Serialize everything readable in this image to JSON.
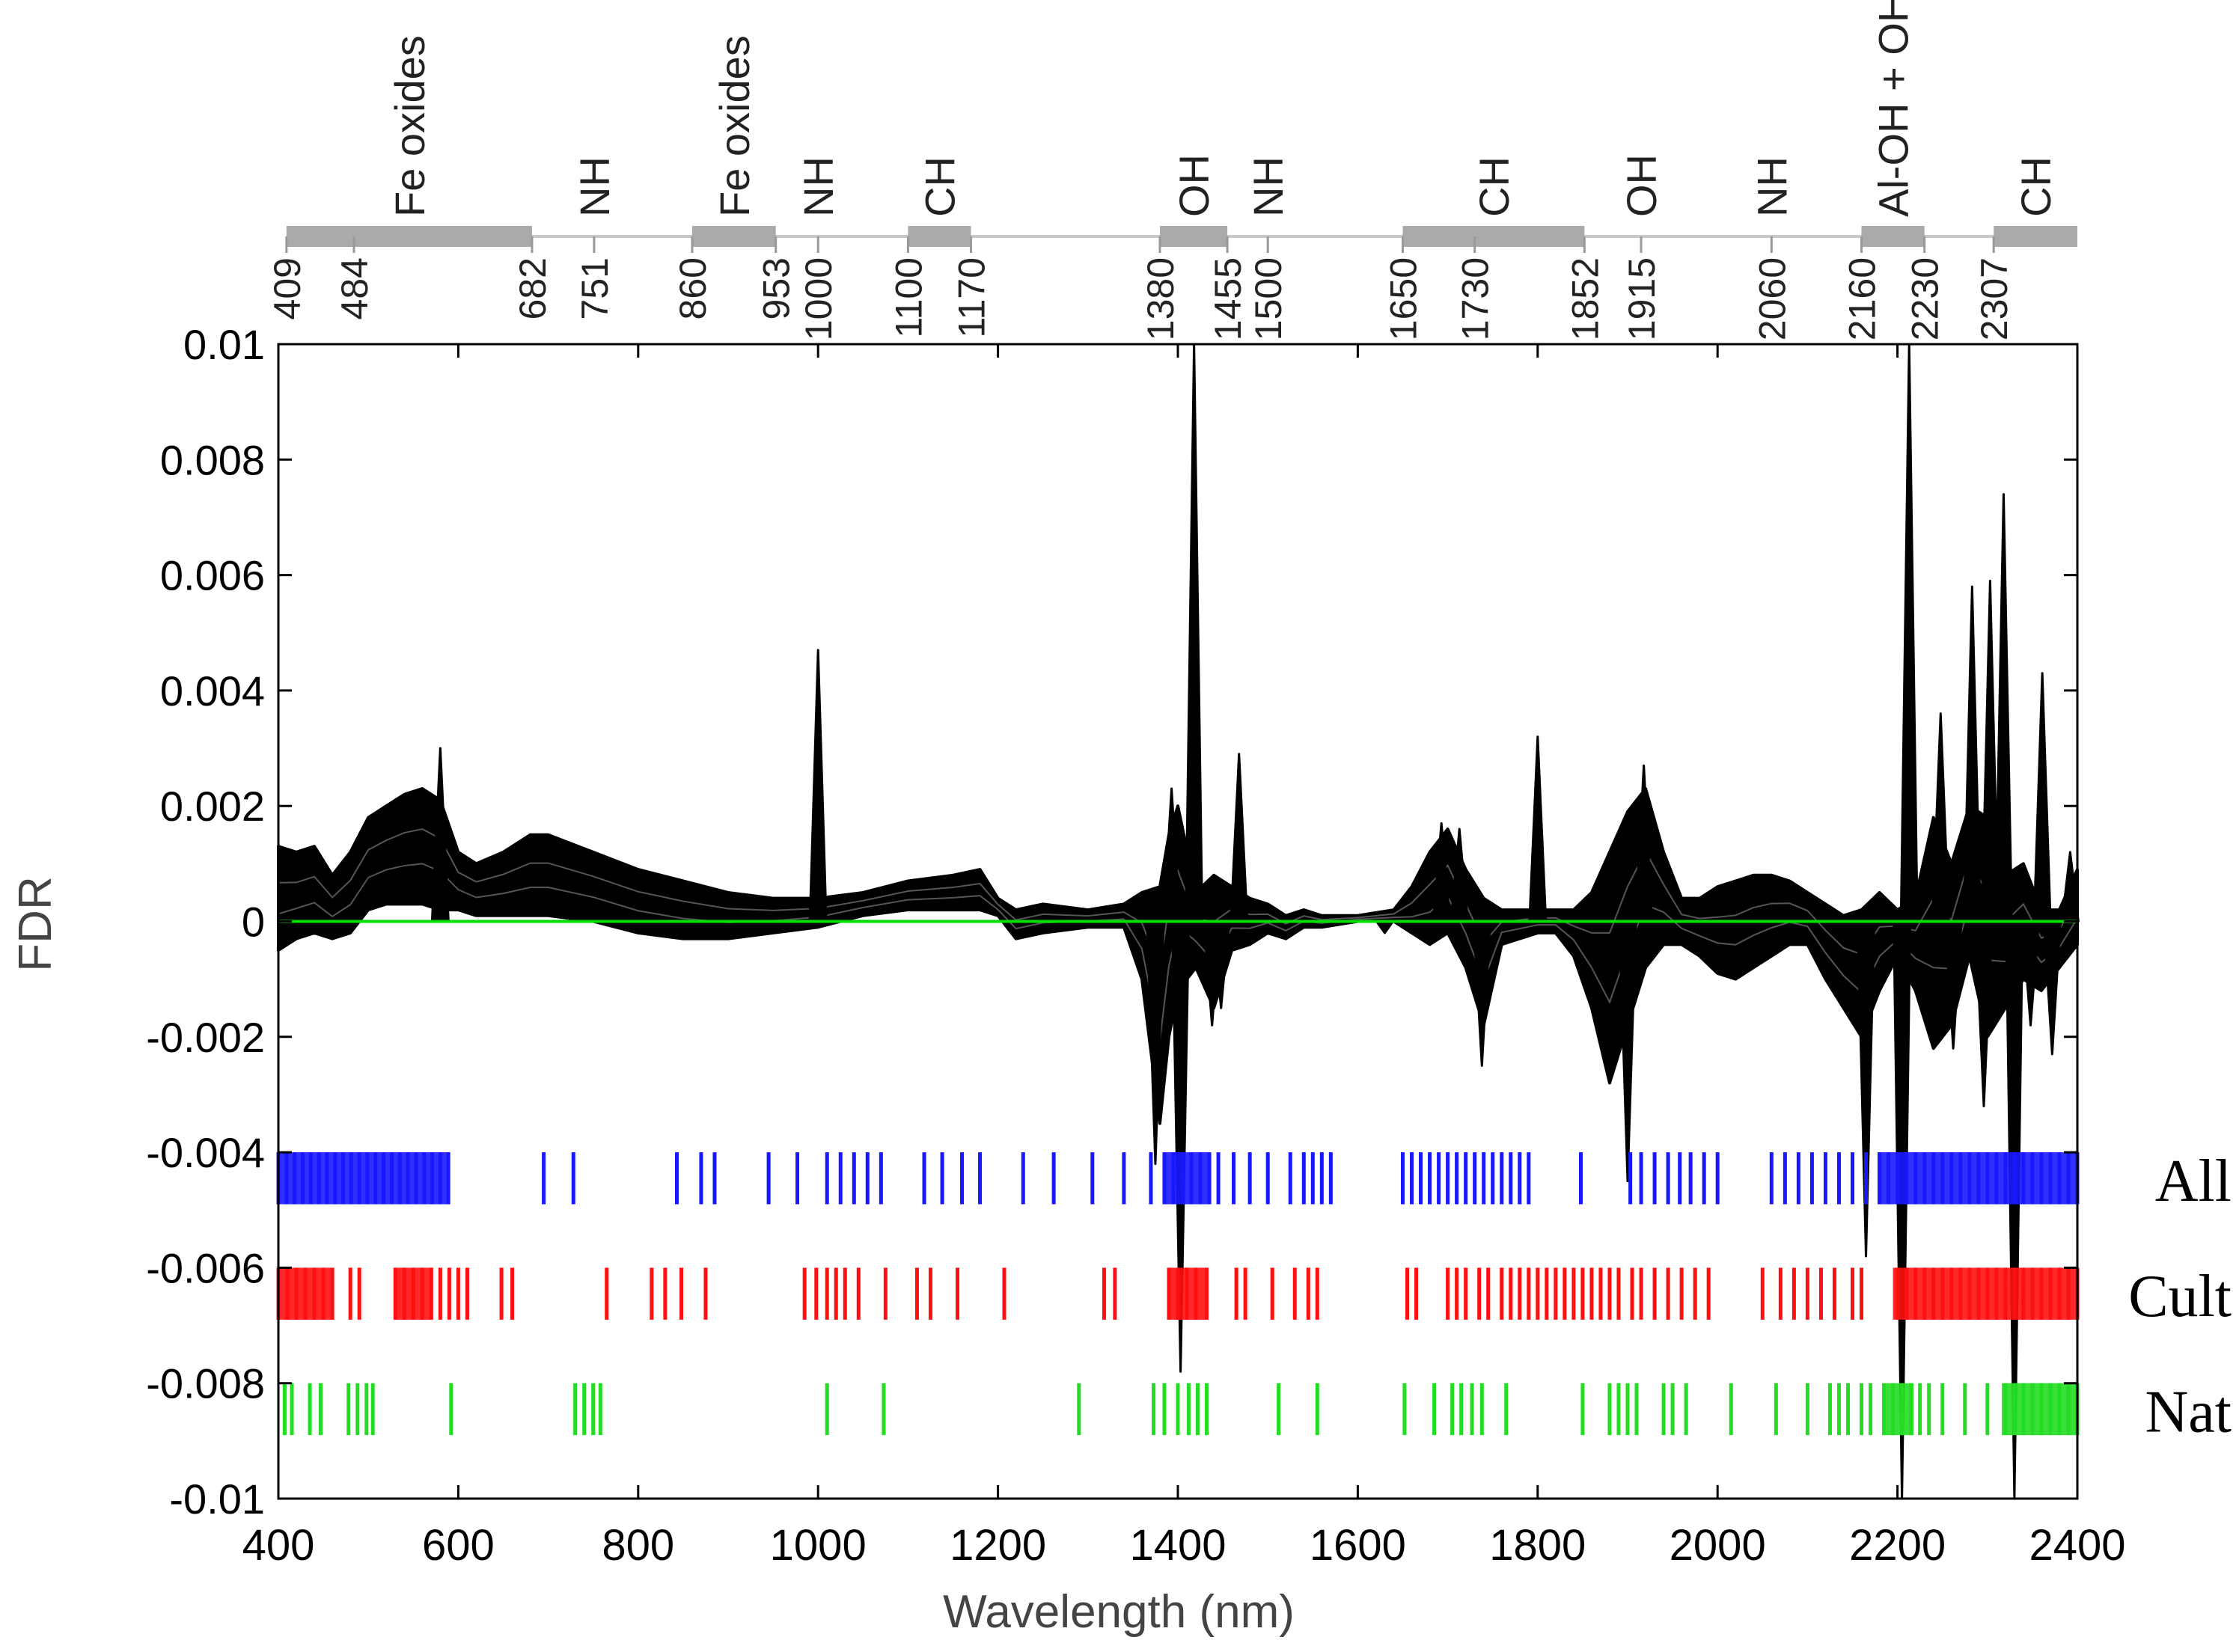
{
  "chart_data": {
    "type": "line",
    "title": "",
    "xlabel": "Wavelength (nm)",
    "ylabel": "FDR",
    "xlim": [
      400,
      2400
    ],
    "ylim": [
      -0.01,
      0.01
    ],
    "x_ticks": [
      400,
      600,
      800,
      1000,
      1200,
      1400,
      1600,
      1800,
      2000,
      2200,
      2400
    ],
    "y_ticks": [
      -0.01,
      -0.008,
      -0.006,
      -0.004,
      -0.002,
      0,
      0.002,
      0.004,
      0.006,
      0.008,
      0.01
    ],
    "y_tick_labels": [
      "-0.01",
      "-0.008",
      "-0.006",
      "-0.004",
      "-0.002",
      "0",
      "0.002",
      "0.004",
      "0.006",
      "0.008",
      "0.01"
    ],
    "zero_line_color": "#00dd00",
    "curve_color": "#000000",
    "band_line_color": "#c8c8c8",
    "band_bar_color": "#aaaaaa",
    "band_ticks": [
      409,
      484,
      682,
      751,
      860,
      953,
      1000,
      1100,
      1170,
      1380,
      1455,
      1500,
      1650,
      1730,
      1852,
      1915,
      2060,
      2160,
      2230,
      2307
    ],
    "band_tick_labels": [
      "409",
      "484",
      "682",
      "751",
      "860",
      "953",
      "1000",
      "1100",
      "1170",
      "1380",
      "1455",
      "1500",
      "1650",
      "1730",
      "1852",
      "1915",
      "2060",
      "2160",
      "2230",
      "2307"
    ],
    "absorption_bands": [
      {
        "label": "Fe oxides",
        "start": 409,
        "end": 682
      },
      {
        "label": "NH",
        "at": 751
      },
      {
        "label": "Fe oxides",
        "start": 860,
        "end": 953
      },
      {
        "label": "NH",
        "at": 1000
      },
      {
        "label": "CH",
        "start": 1100,
        "end": 1170
      },
      {
        "label": "OH",
        "start": 1380,
        "end": 1455
      },
      {
        "label": "NH",
        "at": 1500
      },
      {
        "label": "CH",
        "start": 1650,
        "end": 1852
      },
      {
        "label": "OH",
        "at": 1915
      },
      {
        "label": "NH",
        "at": 2060
      },
      {
        "label": "Al-OH + OH",
        "start": 2160,
        "end": 2230
      },
      {
        "label": "CH",
        "start": 2307,
        "end": 2400
      }
    ],
    "envelope": {
      "x": [
        400,
        420,
        440,
        460,
        480,
        500,
        520,
        540,
        560,
        580,
        600,
        620,
        650,
        680,
        700,
        750,
        800,
        850,
        900,
        950,
        1000,
        1050,
        1100,
        1150,
        1180,
        1200,
        1220,
        1250,
        1300,
        1340,
        1360,
        1380,
        1390,
        1400,
        1420,
        1440,
        1460,
        1480,
        1500,
        1520,
        1540,
        1560,
        1600,
        1640,
        1660,
        1680,
        1700,
        1720,
        1740,
        1760,
        1780,
        1800,
        1820,
        1840,
        1860,
        1880,
        1900,
        1920,
        1940,
        1960,
        1980,
        2000,
        2020,
        2040,
        2060,
        2080,
        2100,
        2120,
        2140,
        2160,
        2180,
        2200,
        2220,
        2240,
        2260,
        2280,
        2300,
        2320,
        2340,
        2360,
        2380,
        2400
      ],
      "upper": [
        0.0013,
        0.0012,
        0.0013,
        0.0008,
        0.0012,
        0.0018,
        0.002,
        0.0022,
        0.0023,
        0.0021,
        0.0012,
        0.001,
        0.0012,
        0.0015,
        0.0015,
        0.0012,
        0.0009,
        0.0007,
        0.0005,
        0.0004,
        0.0004,
        0.0005,
        0.0007,
        0.0008,
        0.0009,
        0.0004,
        0.0002,
        0.0003,
        0.0002,
        0.0003,
        0.0005,
        0.0006,
        0.0015,
        0.002,
        0.0005,
        0.0008,
        0.0006,
        0.0004,
        0.0003,
        0.0001,
        0.0002,
        0.0001,
        0.0001,
        0.0002,
        0.0006,
        0.0012,
        0.0016,
        0.0009,
        0.0004,
        0.0002,
        0.0002,
        0.0002,
        0.0002,
        0.0002,
        0.0005,
        0.0012,
        0.0019,
        0.0023,
        0.0012,
        0.0004,
        0.0004,
        0.0006,
        0.0007,
        0.0008,
        0.0008,
        0.0007,
        0.0005,
        0.0003,
        0.0001,
        0.0002,
        0.0005,
        0.0002,
        0.0004,
        0.0018,
        0.001,
        0.002,
        0.0018,
        0.0008,
        0.001,
        0.0002,
        0.0002,
        0.0009
      ],
      "lower": [
        -0.0005,
        -0.0003,
        -0.0002,
        -0.0003,
        -0.0002,
        0.0002,
        0.0003,
        0.0003,
        0.0003,
        0.0002,
        0.0002,
        0.0001,
        0.0001,
        0.0001,
        0.0001,
        0.0,
        -0.0002,
        -0.0003,
        -0.0003,
        -0.0002,
        -0.0001,
        0.0001,
        0.0002,
        0.0002,
        0.0002,
        0.0001,
        -0.0003,
        -0.0002,
        -0.0001,
        -0.0001,
        -0.001,
        -0.0035,
        -0.002,
        -0.0012,
        -0.0008,
        -0.0015,
        -0.0005,
        -0.0004,
        -0.0002,
        -0.0003,
        -0.0001,
        -0.0001,
        0.0,
        0.0,
        -0.0002,
        -0.0004,
        -0.0002,
        -0.0008,
        -0.0018,
        -0.0004,
        -0.0003,
        -0.0002,
        -0.0002,
        -0.0006,
        -0.0015,
        -0.0028,
        -0.0018,
        -0.0008,
        -0.0004,
        -0.0004,
        -0.0006,
        -0.0009,
        -0.001,
        -0.0008,
        -0.0006,
        -0.0004,
        -0.0004,
        -0.001,
        -0.0015,
        -0.002,
        -0.0012,
        -0.0006,
        -0.0012,
        -0.0022,
        -0.0018,
        -0.0006,
        -0.002,
        -0.0015,
        -0.001,
        -0.0012,
        -0.0008,
        -0.0004
      ]
    },
    "spikes": [
      {
        "x": 580,
        "value": 0.003
      },
      {
        "x": 1000,
        "value": 0.0047
      },
      {
        "x": 1000,
        "value": -0.0001
      },
      {
        "x": 1375,
        "value": -0.0042
      },
      {
        "x": 1393,
        "value": 0.0023
      },
      {
        "x": 1403,
        "value": -0.0078
      },
      {
        "x": 1418,
        "value": 0.01
      },
      {
        "x": 1438,
        "value": -0.0018
      },
      {
        "x": 1448,
        "value": -0.0015
      },
      {
        "x": 1468,
        "value": 0.0029
      },
      {
        "x": 1630,
        "value": -0.0002
      },
      {
        "x": 1693,
        "value": 0.0017
      },
      {
        "x": 1713,
        "value": 0.0016
      },
      {
        "x": 1738,
        "value": -0.0025
      },
      {
        "x": 1800,
        "value": 0.0032
      },
      {
        "x": 1900,
        "value": -0.0045
      },
      {
        "x": 1918,
        "value": 0.0027
      },
      {
        "x": 2165,
        "value": -0.0058
      },
      {
        "x": 2205,
        "value": -0.01
      },
      {
        "x": 2213,
        "value": 0.01
      },
      {
        "x": 2248,
        "value": 0.0036
      },
      {
        "x": 2262,
        "value": -0.0022
      },
      {
        "x": 2283,
        "value": 0.0058
      },
      {
        "x": 2296,
        "value": -0.0032
      },
      {
        "x": 2303,
        "value": 0.0059
      },
      {
        "x": 2318,
        "value": 0.0074
      },
      {
        "x": 2330,
        "value": -0.01
      },
      {
        "x": 2348,
        "value": -0.0018
      },
      {
        "x": 2361,
        "value": 0.0043
      },
      {
        "x": 2372,
        "value": -0.0023
      },
      {
        "x": 2392,
        "value": 0.0012
      }
    ],
    "selected_bands": [
      {
        "name": "All",
        "color": "#1818ff",
        "y_range": [
          -0.0049,
          -0.004
        ],
        "blocks": [
          [
            400,
            590
          ],
          [
            1385,
            1435
          ],
          [
            2180,
            2400
          ]
        ],
        "x": [
          400,
          409,
          418,
          427,
          436,
          445,
          454,
          463,
          472,
          481,
          490,
          499,
          508,
          517,
          526,
          535,
          544,
          553,
          562,
          571,
          580,
          589,
          695,
          728,
          843,
          870,
          885,
          945,
          977,
          1010,
          1025,
          1040,
          1055,
          1070,
          1118,
          1138,
          1160,
          1180,
          1228,
          1262,
          1305,
          1340,
          1370,
          1385,
          1395,
          1405,
          1415,
          1425,
          1435,
          1445,
          1462,
          1480,
          1500,
          1525,
          1540,
          1550,
          1560,
          1570,
          1650,
          1660,
          1670,
          1680,
          1690,
          1700,
          1710,
          1720,
          1730,
          1740,
          1750,
          1760,
          1770,
          1780,
          1790,
          1848,
          1903,
          1915,
          1930,
          1945,
          1958,
          1970,
          1985,
          2000,
          2060,
          2075,
          2090,
          2105,
          2120,
          2135,
          2150,
          2165,
          2180,
          2190,
          2200,
          2210,
          2220,
          2230,
          2240,
          2250,
          2260,
          2270,
          2280,
          2290,
          2300,
          2310,
          2320,
          2330,
          2340,
          2350,
          2360,
          2370,
          2380,
          2390,
          2400
        ]
      },
      {
        "name": "Cult",
        "color": "#ff1010",
        "y_range": [
          -0.0069,
          -0.006
        ],
        "blocks": [
          [
            400,
            460
          ],
          [
            530,
            570
          ],
          [
            1390,
            1432
          ],
          [
            2195,
            2400
          ]
        ],
        "x": [
          400,
          410,
          420,
          430,
          440,
          450,
          460,
          480,
          490,
          530,
          540,
          550,
          560,
          570,
          580,
          590,
          600,
          610,
          648,
          660,
          765,
          815,
          830,
          848,
          875,
          985,
          998,
          1010,
          1020,
          1030,
          1045,
          1075,
          1110,
          1125,
          1155,
          1207,
          1318,
          1330,
          1390,
          1400,
          1410,
          1420,
          1432,
          1465,
          1475,
          1505,
          1530,
          1545,
          1555,
          1655,
          1665,
          1700,
          1710,
          1720,
          1735,
          1745,
          1760,
          1770,
          1780,
          1790,
          1800,
          1810,
          1820,
          1830,
          1840,
          1850,
          1860,
          1870,
          1880,
          1890,
          1905,
          1915,
          1930,
          1945,
          1960,
          1975,
          1990,
          2050,
          2070,
          2085,
          2100,
          2115,
          2130,
          2150,
          2160,
          2200,
          2210,
          2220,
          2230,
          2240,
          2250,
          2260,
          2270,
          2280,
          2290,
          2300,
          2310,
          2320,
          2330,
          2340,
          2350,
          2360,
          2370,
          2380,
          2390,
          2400
        ]
      },
      {
        "name": "Nat",
        "color": "#22dd22",
        "y_range": [
          -0.0089,
          -0.008
        ],
        "blocks": [
          [
            2183,
            2218
          ],
          [
            2316,
            2400
          ]
        ],
        "x": [
          407,
          415,
          435,
          447,
          478,
          488,
          498,
          505,
          592,
          730,
          740,
          750,
          758,
          1010,
          1073,
          1290,
          1373,
          1385,
          1400,
          1412,
          1422,
          1432,
          1512,
          1555,
          1652,
          1685,
          1705,
          1715,
          1727,
          1738,
          1765,
          1850,
          1880,
          1890,
          1900,
          1910,
          1940,
          1950,
          1965,
          2015,
          2065,
          2100,
          2125,
          2135,
          2145,
          2160,
          2170,
          2185,
          2195,
          2205,
          2215,
          2225,
          2235,
          2250,
          2275,
          2300,
          2320,
          2330,
          2340,
          2350,
          2360,
          2370,
          2380,
          2390,
          2400
        ]
      }
    ]
  }
}
